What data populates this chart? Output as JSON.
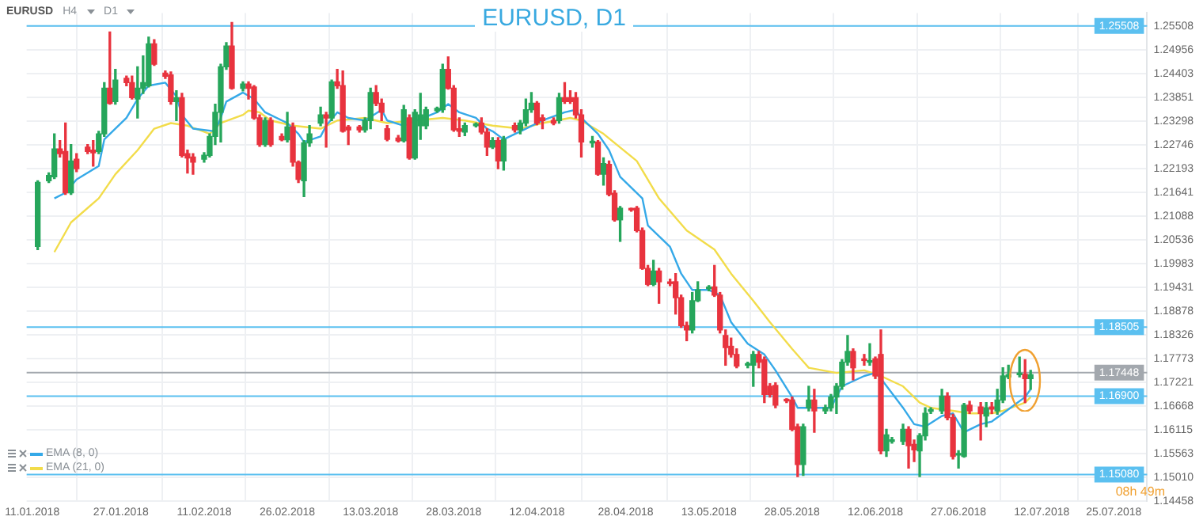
{
  "chart_data": {
    "type": "candlestick",
    "title": "EURUSD, D1",
    "annotations": [
      "EURUSD",
      "H4",
      "D1",
      "08h 49m"
    ],
    "x": [
      "2018-01-12",
      "2018-01-14",
      "2018-01-15",
      "2018-01-16",
      "2018-01-17",
      "2018-01-18",
      "2018-01-19",
      "2018-01-21",
      "2018-01-22",
      "2018-01-23",
      "2018-01-24",
      "2018-01-25",
      "2018-01-26",
      "2018-01-28",
      "2018-01-29",
      "2018-01-30",
      "2018-01-31",
      "2018-02-01",
      "2018-02-02",
      "2018-02-04",
      "2018-02-05",
      "2018-02-06",
      "2018-02-07",
      "2018-02-08",
      "2018-02-09",
      "2018-02-11",
      "2018-02-12",
      "2018-02-13",
      "2018-02-14",
      "2018-02-15",
      "2018-02-16",
      "2018-02-18",
      "2018-02-19",
      "2018-02-20",
      "2018-02-21",
      "2018-02-22",
      "2018-02-23",
      "2018-02-25",
      "2018-02-26",
      "2018-02-27",
      "2018-02-28",
      "2018-03-01",
      "2018-03-02",
      "2018-03-04",
      "2018-03-05",
      "2018-03-06",
      "2018-03-07",
      "2018-03-08",
      "2018-03-09",
      "2018-03-11",
      "2018-03-12",
      "2018-03-13",
      "2018-03-14",
      "2018-03-15",
      "2018-03-16",
      "2018-03-18",
      "2018-03-19",
      "2018-03-20",
      "2018-03-21",
      "2018-03-22",
      "2018-03-23",
      "2018-03-25",
      "2018-03-26",
      "2018-03-27",
      "2018-03-28",
      "2018-03-29",
      "2018-03-30",
      "2018-04-01",
      "2018-04-02",
      "2018-04-03",
      "2018-04-04",
      "2018-04-05",
      "2018-04-06",
      "2018-04-08",
      "2018-04-09",
      "2018-04-10",
      "2018-04-11",
      "2018-04-12",
      "2018-04-13",
      "2018-04-15",
      "2018-04-16",
      "2018-04-17",
      "2018-04-18",
      "2018-04-19",
      "2018-04-20",
      "2018-04-22",
      "2018-04-23",
      "2018-04-24",
      "2018-04-25",
      "2018-04-26",
      "2018-04-27",
      "2018-04-29",
      "2018-04-30",
      "2018-05-01",
      "2018-05-02",
      "2018-05-03",
      "2018-05-04",
      "2018-05-06",
      "2018-05-07",
      "2018-05-08",
      "2018-05-09",
      "2018-05-10",
      "2018-05-11",
      "2018-05-13",
      "2018-05-14",
      "2018-05-15",
      "2018-05-16",
      "2018-05-17",
      "2018-05-18",
      "2018-05-20",
      "2018-05-21",
      "2018-05-22",
      "2018-05-23",
      "2018-05-24",
      "2018-05-25",
      "2018-05-27",
      "2018-05-28",
      "2018-05-29",
      "2018-05-30",
      "2018-05-31",
      "2018-06-01",
      "2018-06-03",
      "2018-06-04",
      "2018-06-05",
      "2018-06-06",
      "2018-06-07",
      "2018-06-08",
      "2018-06-10",
      "2018-06-11",
      "2018-06-12",
      "2018-06-13",
      "2018-06-14",
      "2018-06-15",
      "2018-06-17",
      "2018-06-18",
      "2018-06-19",
      "2018-06-20",
      "2018-06-21",
      "2018-06-22",
      "2018-06-24",
      "2018-06-25",
      "2018-06-26",
      "2018-06-27",
      "2018-06-28",
      "2018-06-29",
      "2018-07-01",
      "2018-07-02",
      "2018-07-03",
      "2018-07-04",
      "2018-07-05",
      "2018-07-06",
      "2018-07-08",
      "2018-07-09",
      "2018-07-10"
    ],
    "ohlc": [
      [
        1.2038,
        1.2191,
        1.2031,
        1.2187
      ],
      [
        1.2191,
        1.2209,
        1.2187,
        1.2203
      ],
      [
        1.22,
        1.23,
        1.2196,
        1.2265
      ],
      [
        1.2265,
        1.2284,
        1.2246,
        1.2254
      ],
      [
        1.2259,
        1.2325,
        1.2159,
        1.2163
      ],
      [
        1.2163,
        1.2275,
        1.2159,
        1.2237
      ],
      [
        1.2241,
        1.2254,
        1.2212,
        1.2219
      ],
      [
        1.2269,
        1.2275,
        1.2254,
        1.2259
      ],
      [
        1.2262,
        1.2284,
        1.2225,
        1.2256
      ],
      [
        1.2259,
        1.2306,
        1.2254,
        1.23
      ],
      [
        1.23,
        1.2419,
        1.2294,
        1.2406
      ],
      [
        1.2406,
        1.2537,
        1.2369,
        1.2371
      ],
      [
        1.2375,
        1.245,
        1.2369,
        1.2425
      ],
      [
        1.2429,
        1.2434,
        1.2412,
        1.2419
      ],
      [
        1.2419,
        1.2434,
        1.2381,
        1.2384
      ],
      [
        1.2381,
        1.2456,
        1.2337,
        1.2406
      ],
      [
        1.2406,
        1.2481,
        1.2394,
        1.2419
      ],
      [
        1.2412,
        1.2525,
        1.2409,
        1.2509
      ],
      [
        1.2509,
        1.2519,
        1.2459,
        1.2462
      ],
      [
        1.2441,
        1.2446,
        1.2429,
        1.2434
      ],
      [
        1.2437,
        1.2444,
        1.2369,
        1.2375
      ],
      [
        1.2375,
        1.24,
        1.2331,
        1.2384
      ],
      [
        1.2384,
        1.2394,
        1.2246,
        1.225
      ],
      [
        1.2254,
        1.2262,
        1.2209,
        1.2244
      ],
      [
        1.2246,
        1.2254,
        1.2206,
        1.2234
      ],
      [
        1.2241,
        1.2256,
        1.2234,
        1.225
      ],
      [
        1.225,
        1.23,
        1.2246,
        1.2294
      ],
      [
        1.2294,
        1.2369,
        1.2275,
        1.235
      ],
      [
        1.235,
        1.2462,
        1.2281,
        1.2456
      ],
      [
        1.2456,
        1.2512,
        1.245,
        1.2504
      ],
      [
        1.2504,
        1.2559,
        1.2404,
        1.2406
      ],
      [
        1.2406,
        1.2421,
        1.24,
        1.2416
      ],
      [
        1.2416,
        1.2421,
        1.2381,
        1.2406
      ],
      [
        1.2409,
        1.2412,
        1.2334,
        1.2337
      ],
      [
        1.2337,
        1.2344,
        1.2271,
        1.2275
      ],
      [
        1.2275,
        1.2337,
        1.2271,
        1.2331
      ],
      [
        1.2331,
        1.2337,
        1.2271,
        1.2275
      ],
      [
        1.2294,
        1.23,
        1.2284,
        1.2286
      ],
      [
        1.2286,
        1.235,
        1.2281,
        1.2316
      ],
      [
        1.2316,
        1.2325,
        1.2225,
        1.2234
      ],
      [
        1.2234,
        1.2237,
        1.2187,
        1.2194
      ],
      [
        1.2191,
        1.2284,
        1.2154,
        1.2279
      ],
      [
        1.2279,
        1.2319,
        1.2271,
        1.23
      ],
      [
        1.2325,
        1.2362,
        1.2319,
        1.2344
      ],
      [
        1.2344,
        1.235,
        1.2269,
        1.2337
      ],
      [
        1.2337,
        1.2425,
        1.2331,
        1.2421
      ],
      [
        1.2421,
        1.245,
        1.2406,
        1.2412
      ],
      [
        1.2412,
        1.2446,
        1.2304,
        1.2306
      ],
      [
        1.2316,
        1.2319,
        1.2275,
        1.2309
      ],
      [
        1.2316,
        1.2319,
        1.2304,
        1.2309
      ],
      [
        1.2309,
        1.2337,
        1.2304,
        1.2331
      ],
      [
        1.2331,
        1.2406,
        1.2312,
        1.2396
      ],
      [
        1.2396,
        1.2412,
        1.2366,
        1.2371
      ],
      [
        1.2371,
        1.2381,
        1.2331,
        1.235
      ],
      [
        1.2312,
        1.2319,
        1.2284,
        1.2287
      ],
      [
        1.229,
        1.2296,
        1.2281,
        1.2284
      ],
      [
        1.2284,
        1.2366,
        1.2281,
        1.2356
      ],
      [
        1.2337,
        1.2344,
        1.2241,
        1.2244
      ],
      [
        1.2244,
        1.2356,
        1.2241,
        1.235
      ],
      [
        1.2319,
        1.2394,
        1.2287,
        1.2344
      ],
      [
        1.2319,
        1.2362,
        1.2312,
        1.2356
      ],
      [
        1.2354,
        1.2362,
        1.235,
        1.2359
      ],
      [
        1.2356,
        1.2462,
        1.235,
        1.245
      ],
      [
        1.245,
        1.2479,
        1.2404,
        1.2406
      ],
      [
        1.2406,
        1.2412,
        1.2306,
        1.2309
      ],
      [
        1.2312,
        1.2337,
        1.2294,
        1.2306
      ],
      [
        1.2304,
        1.2325,
        1.2296,
        1.2319
      ],
      [
        1.2319,
        1.2325,
        1.2316,
        1.2321
      ],
      [
        1.2325,
        1.2337,
        1.23,
        1.2304
      ],
      [
        1.2304,
        1.2312,
        1.225,
        1.2269
      ],
      [
        1.2269,
        1.2291,
        1.2266,
        1.2284
      ],
      [
        1.2284,
        1.2291,
        1.2219,
        1.2237
      ],
      [
        1.2237,
        1.2294,
        1.2216,
        1.2287
      ],
      [
        1.2319,
        1.2325,
        1.2304,
        1.2309
      ],
      [
        1.2309,
        1.2331,
        1.23,
        1.2325
      ],
      [
        1.2325,
        1.2381,
        1.2319,
        1.2356
      ],
      [
        1.2356,
        1.2396,
        1.235,
        1.2371
      ],
      [
        1.2371,
        1.2375,
        1.2321,
        1.2325
      ],
      [
        1.2337,
        1.2344,
        1.2312,
        1.2331
      ],
      [
        1.2331,
        1.2337,
        1.2321,
        1.2325
      ],
      [
        1.2331,
        1.2394,
        1.2325,
        1.2384
      ],
      [
        1.2384,
        1.2419,
        1.2371,
        1.2375
      ],
      [
        1.2384,
        1.24,
        1.2371,
        1.2375
      ],
      [
        1.2384,
        1.2396,
        1.2337,
        1.2344
      ],
      [
        1.2344,
        1.2356,
        1.2246,
        1.2281
      ],
      [
        1.2279,
        1.2294,
        1.2269,
        1.2281
      ],
      [
        1.2281,
        1.2284,
        1.2204,
        1.2206
      ],
      [
        1.2206,
        1.2244,
        1.2181,
        1.2231
      ],
      [
        1.2229,
        1.2237,
        1.2156,
        1.2159
      ],
      [
        1.2162,
        1.2168,
        1.2097,
        1.21
      ],
      [
        1.21,
        1.2131,
        1.205,
        1.2127
      ],
      [
        1.2125,
        1.2127,
        1.212,
        1.2123
      ],
      [
        1.2127,
        1.2131,
        1.2072,
        1.2075
      ],
      [
        1.2075,
        1.2081,
        1.1985,
        1.1987
      ],
      [
        1.1987,
        1.1994,
        1.1947,
        1.195
      ],
      [
        1.195,
        1.2006,
        1.1947,
        1.1981
      ],
      [
        1.1981,
        1.1987,
        1.1906,
        1.1956
      ],
      [
        1.1955,
        1.1962,
        1.1947,
        1.1952
      ],
      [
        1.1956,
        1.1975,
        1.1881,
        1.1919
      ],
      [
        1.1919,
        1.1925,
        1.185,
        1.1854
      ],
      [
        1.1854,
        1.1862,
        1.1819,
        1.1844
      ],
      [
        1.1844,
        1.1931,
        1.1837,
        1.1912
      ],
      [
        1.1912,
        1.1956,
        1.191,
        1.1937
      ],
      [
        1.194,
        1.1947,
        1.1935,
        1.1942
      ],
      [
        1.1944,
        1.1994,
        1.1922,
        1.1925
      ],
      [
        1.1925,
        1.1931,
        1.1837,
        1.1844
      ],
      [
        1.1831,
        1.1844,
        1.1762,
        1.1803
      ],
      [
        1.1806,
        1.1825,
        1.1781,
        1.1787
      ],
      [
        1.1787,
        1.18,
        1.1756,
        1.176
      ],
      [
        1.1762,
        1.1769,
        1.1756,
        1.1765
      ],
      [
        1.1762,
        1.1794,
        1.1713,
        1.1787
      ],
      [
        1.1787,
        1.1794,
        1.1756,
        1.1769
      ],
      [
        1.1775,
        1.1781,
        1.1675,
        1.1694
      ],
      [
        1.1713,
        1.1719,
        1.1688,
        1.1694
      ],
      [
        1.1715,
        1.1721,
        1.1663,
        1.1669
      ],
      [
        1.1681,
        1.1684,
        1.1675,
        1.1679
      ],
      [
        1.1681,
        1.1688,
        1.161,
        1.1613
      ],
      [
        1.1619,
        1.1625,
        1.1503,
        1.1531
      ],
      [
        1.1531,
        1.1625,
        1.1506,
        1.1619
      ],
      [
        1.1663,
        1.1713,
        1.1656,
        1.1681
      ],
      [
        1.1681,
        1.1706,
        1.1606,
        1.1656
      ],
      [
        1.1656,
        1.1669,
        1.165,
        1.1663
      ],
      [
        1.1663,
        1.1694,
        1.1656,
        1.1688
      ],
      [
        1.1688,
        1.1719,
        1.165,
        1.1713
      ],
      [
        1.1713,
        1.1775,
        1.1706,
        1.1769
      ],
      [
        1.1769,
        1.1831,
        1.1762,
        1.1794
      ],
      [
        1.1794,
        1.18,
        1.1728,
        1.1756
      ],
      [
        1.1775,
        1.1787,
        1.1762,
        1.1773
      ],
      [
        1.1769,
        1.1812,
        1.1762,
        1.1771
      ],
      [
        1.1777,
        1.1781,
        1.1731,
        1.1737
      ],
      [
        1.1787,
        1.1844,
        1.1556,
        1.1563
      ],
      [
        1.1563,
        1.1613,
        1.155,
        1.16
      ],
      [
        1.1585,
        1.1594,
        1.1581,
        1.1588
      ],
      [
        1.1585,
        1.1625,
        1.1578,
        1.1613
      ],
      [
        1.1613,
        1.1619,
        1.1523,
        1.1575
      ],
      [
        1.1578,
        1.1588,
        1.1538,
        1.1565
      ],
      [
        1.1563,
        1.1603,
        1.1503,
        1.1598
      ],
      [
        1.1598,
        1.1663,
        1.1588,
        1.165
      ],
      [
        1.1655,
        1.1663,
        1.165,
        1.1658
      ],
      [
        1.1656,
        1.1706,
        1.165,
        1.169
      ],
      [
        1.169,
        1.1698,
        1.1635,
        1.164
      ],
      [
        1.164,
        1.1648,
        1.1544,
        1.155
      ],
      [
        1.1553,
        1.1563,
        1.1523,
        1.1554
      ],
      [
        1.155,
        1.1673,
        1.1548,
        1.1669
      ],
      [
        1.1669,
        1.1678,
        1.165,
        1.1656
      ],
      [
        1.1665,
        1.1675,
        1.1588,
        1.165
      ],
      [
        1.1644,
        1.1675,
        1.1619,
        1.1663
      ],
      [
        1.1665,
        1.1675,
        1.165,
        1.166
      ],
      [
        1.1656,
        1.1706,
        1.1648,
        1.1681
      ],
      [
        1.1681,
        1.1756,
        1.1675,
        1.1737
      ],
      [
        1.1735,
        1.1762,
        1.1731,
        1.174
      ],
      [
        1.174,
        1.1781,
        1.1735,
        1.1741
      ],
      [
        1.1741,
        1.1775,
        1.1675,
        1.1731
      ],
      [
        1.1731,
        1.175,
        1.1706,
        1.174
      ]
    ],
    "colors": [
      "#26a65b",
      "#26a65b",
      "#26a65b",
      "#e8333e",
      "#e8333e",
      "#26a65b",
      "#e8333e",
      "#e8333e",
      "#e8333e",
      "#26a65b",
      "#26a65b",
      "#e8333e",
      "#26a65b",
      "#e8333e",
      "#e8333e",
      "#26a65b",
      "#26a65b",
      "#26a65b",
      "#e8333e",
      "#e8333e",
      "#e8333e",
      "#26a65b",
      "#e8333e",
      "#e8333e",
      "#e8333e",
      "#26a65b",
      "#26a65b",
      "#26a65b",
      "#26a65b",
      "#26a65b",
      "#e8333e",
      "#26a65b",
      "#e8333e",
      "#e8333e",
      "#e8333e",
      "#26a65b",
      "#e8333e",
      "#e8333e",
      "#26a65b",
      "#e8333e",
      "#e8333e",
      "#26a65b",
      "#26a65b",
      "#26a65b",
      "#e8333e",
      "#26a65b",
      "#e8333e",
      "#e8333e",
      "#e8333e",
      "#e8333e",
      "#26a65b",
      "#26a65b",
      "#e8333e",
      "#e8333e",
      "#e8333e",
      "#e8333e",
      "#26a65b",
      "#e8333e",
      "#26a65b",
      "#26a65b",
      "#26a65b",
      "#26a65b",
      "#26a65b",
      "#e8333e",
      "#e8333e",
      "#e8333e",
      "#26a65b",
      "#26a65b",
      "#e8333e",
      "#e8333e",
      "#26a65b",
      "#e8333e",
      "#26a65b",
      "#e8333e",
      "#26a65b",
      "#26a65b",
      "#26a65b",
      "#e8333e",
      "#e8333e",
      "#e8333e",
      "#26a65b",
      "#e8333e",
      "#e8333e",
      "#e8333e",
      "#e8333e",
      "#26a65b",
      "#e8333e",
      "#26a65b",
      "#e8333e",
      "#e8333e",
      "#26a65b",
      "#e8333e",
      "#e8333e",
      "#e8333e",
      "#e8333e",
      "#26a65b",
      "#e8333e",
      "#e8333e",
      "#e8333e",
      "#e8333e",
      "#e8333e",
      "#26a65b",
      "#26a65b",
      "#26a65b",
      "#e8333e",
      "#e8333e",
      "#e8333e",
      "#e8333e",
      "#e8333e",
      "#26a65b",
      "#26a65b",
      "#e8333e",
      "#e8333e",
      "#e8333e",
      "#e8333e",
      "#e8333e",
      "#e8333e",
      "#e8333e",
      "#26a65b",
      "#26a65b",
      "#e8333e",
      "#26a65b",
      "#26a65b",
      "#26a65b",
      "#26a65b",
      "#26a65b",
      "#e8333e",
      "#e8333e",
      "#26a65b",
      "#e8333e",
      "#e8333e",
      "#26a65b",
      "#26a65b",
      "#26a65b",
      "#e8333e",
      "#e8333e",
      "#26a65b",
      "#26a65b",
      "#26a65b",
      "#26a65b",
      "#e8333e",
      "#e8333e",
      "#26a65b",
      "#26a65b",
      "#e8333e",
      "#e8333e",
      "#26a65b",
      "#e8333e",
      "#26a65b",
      "#26a65b",
      "#26a65b",
      "#26a65b",
      "#e8333e",
      "#26a65b"
    ],
    "series": [
      {
        "name": "EMA (8, 0)",
        "type": "line",
        "color": "#35a9e8",
        "x": [
          "2018-01-15",
          "2018-01-17",
          "2018-01-19",
          "2018-01-23",
          "2018-01-24",
          "2018-01-28",
          "2018-01-30",
          "2018-02-01",
          "2018-02-04",
          "2018-02-06",
          "2018-02-07",
          "2018-02-09",
          "2018-02-13",
          "2018-02-14",
          "2018-02-15",
          "2018-02-18",
          "2018-02-20",
          "2018-02-22",
          "2018-02-26",
          "2018-02-28",
          "2018-03-01",
          "2018-03-04",
          "2018-03-05",
          "2018-03-07",
          "2018-03-09",
          "2018-03-12",
          "2018-03-15",
          "2018-03-16",
          "2018-03-19",
          "2018-03-25",
          "2018-03-27",
          "2018-03-29",
          "2018-04-01",
          "2018-04-03",
          "2018-04-04",
          "2018-04-06",
          "2018-04-10",
          "2018-04-13",
          "2018-04-17",
          "2018-04-19",
          "2018-04-20",
          "2018-04-23",
          "2018-04-25",
          "2018-04-27",
          "2018-05-01",
          "2018-05-02",
          "2018-05-06",
          "2018-05-08",
          "2018-05-10",
          "2018-05-13",
          "2018-05-15",
          "2018-05-17",
          "2018-05-20",
          "2018-05-23",
          "2018-05-25",
          "2018-05-28",
          "2018-05-29",
          "2018-05-31",
          "2018-06-04",
          "2018-06-06",
          "2018-06-10",
          "2018-06-12",
          "2018-06-13",
          "2018-06-17",
          "2018-06-19",
          "2018-06-21",
          "2018-06-24",
          "2018-06-26",
          "2018-06-28",
          "2018-07-01",
          "2018-07-03",
          "2018-07-05",
          "2018-07-09",
          "2018-07-10"
        ],
        "values": [
          1.215,
          1.2163,
          1.2194,
          1.2225,
          1.2287,
          1.2337,
          1.2381,
          1.2412,
          1.2419,
          1.2387,
          1.2344,
          1.2312,
          1.2306,
          1.2337,
          1.2375,
          1.2396,
          1.2381,
          1.235,
          1.2325,
          1.23,
          1.2281,
          1.2294,
          1.2319,
          1.235,
          1.2337,
          1.2331,
          1.2356,
          1.2331,
          1.2319,
          1.235,
          1.2369,
          1.235,
          1.2337,
          1.2312,
          1.2306,
          1.2287,
          1.2312,
          1.2331,
          1.235,
          1.2356,
          1.2337,
          1.23,
          1.2262,
          1.22,
          1.215,
          1.2087,
          1.2037,
          1.1975,
          1.1937,
          1.1937,
          1.1925,
          1.1862,
          1.1812,
          1.1787,
          1.175,
          1.1688,
          1.1663,
          1.1663,
          1.1663,
          1.1713,
          1.1737,
          1.1744,
          1.1731,
          1.1663,
          1.1625,
          1.1619,
          1.1644,
          1.165,
          1.1606,
          1.1625,
          1.1631,
          1.165,
          1.1688,
          1.1706
        ]
      },
      {
        "name": "EMA (21, 0)",
        "type": "line",
        "color": "#f2dc4a",
        "x": [
          "2018-01-15",
          "2018-01-18",
          "2018-01-23",
          "2018-01-26",
          "2018-01-30",
          "2018-02-02",
          "2018-02-05",
          "2018-02-08",
          "2018-02-12",
          "2018-02-14",
          "2018-02-18",
          "2018-02-19",
          "2018-02-21",
          "2018-02-23",
          "2018-02-27",
          "2018-03-04",
          "2018-03-07",
          "2018-03-12",
          "2018-03-16",
          "2018-03-26",
          "2018-03-30",
          "2018-04-04",
          "2018-04-09",
          "2018-04-13",
          "2018-04-18",
          "2018-04-20",
          "2018-04-24",
          "2018-04-30",
          "2018-05-04",
          "2018-05-09",
          "2018-05-14",
          "2018-05-17",
          "2018-05-21",
          "2018-05-24",
          "2018-05-28",
          "2018-05-31",
          "2018-06-05",
          "2018-06-10",
          "2018-06-13",
          "2018-06-17",
          "2018-06-20",
          "2018-06-22",
          "2018-06-26",
          "2018-06-29",
          "2018-07-03",
          "2018-07-05",
          "2018-07-09",
          "2018-07-10"
        ],
        "values": [
          1.2025,
          1.2094,
          1.215,
          1.2206,
          1.2262,
          1.2312,
          1.2325,
          1.2319,
          1.23,
          1.2325,
          1.2344,
          1.2354,
          1.235,
          1.2331,
          1.2319,
          1.2312,
          1.2331,
          1.2337,
          1.2325,
          1.2337,
          1.2331,
          1.2319,
          1.2312,
          1.2325,
          1.2337,
          1.2331,
          1.23,
          1.2237,
          1.215,
          1.2075,
          1.2031,
          1.1975,
          1.1912,
          1.1862,
          1.18,
          1.1756,
          1.1744,
          1.175,
          1.1737,
          1.1713,
          1.1675,
          1.1663,
          1.1656,
          1.165,
          1.165,
          1.1656,
          1.1675,
          1.1688
        ]
      }
    ],
    "xlim": [
      "2018-01-10",
      "2018-07-31"
    ],
    "xticks": [
      {
        "value": "2018-01-11",
        "label": "11.01.2018"
      },
      {
        "value": "2018-01-27",
        "label": "27.01.2018"
      },
      {
        "value": "2018-02-11",
        "label": "11.02.2018"
      },
      {
        "value": "2018-02-26",
        "label": "26.02.2018"
      },
      {
        "value": "2018-03-13",
        "label": "13.03.2018"
      },
      {
        "value": "2018-03-28",
        "label": "28.03.2018"
      },
      {
        "value": "2018-04-12",
        "label": "12.04.2018"
      },
      {
        "value": "2018-04-28",
        "label": "28.04.2018"
      },
      {
        "value": "2018-05-13",
        "label": "13.05.2018"
      },
      {
        "value": "2018-05-28",
        "label": "28.05.2018"
      },
      {
        "value": "2018-06-12",
        "label": "12.06.2018"
      },
      {
        "value": "2018-06-27",
        "label": "27.06.2018"
      },
      {
        "value": "2018-07-12",
        "label": "12.07.2018"
      },
      {
        "value": "2018-07-25",
        "label": "25.07.2018"
      }
    ],
    "ylim": [
      1.14458,
      1.2581
    ],
    "yticks": [
      1.25508,
      1.24956,
      1.24403,
      1.23851,
      1.23298,
      1.22746,
      1.22193,
      1.21641,
      1.21088,
      1.20536,
      1.19983,
      1.19431,
      1.18878,
      1.18326,
      1.17773,
      1.17221,
      1.16668,
      1.16115,
      1.15563,
      {
        "value": 1.1501,
        "label": "1.15010"
      },
      1.14458
    ],
    "ref_lines": [
      {
        "axis": "y",
        "value": 1.25508,
        "label": "1.25508",
        "color": "#5bc0f0"
      },
      {
        "axis": "y",
        "value": 1.18505,
        "label": "1.18505",
        "color": "#5bc0f0"
      },
      {
        "axis": "y",
        "value": 1.169,
        "label": "1.16900",
        "color": "#5bc0f0"
      },
      {
        "axis": "y",
        "value": 1.1508,
        "label": "1.15080",
        "color": "#5bc0f0"
      },
      {
        "axis": "y",
        "value": 1.17448,
        "label": "1.17448",
        "color": "#a3a8ae"
      }
    ],
    "grid": true,
    "legend": "bottom left",
    "marker": "none",
    "line_style": "solid"
  }
}
